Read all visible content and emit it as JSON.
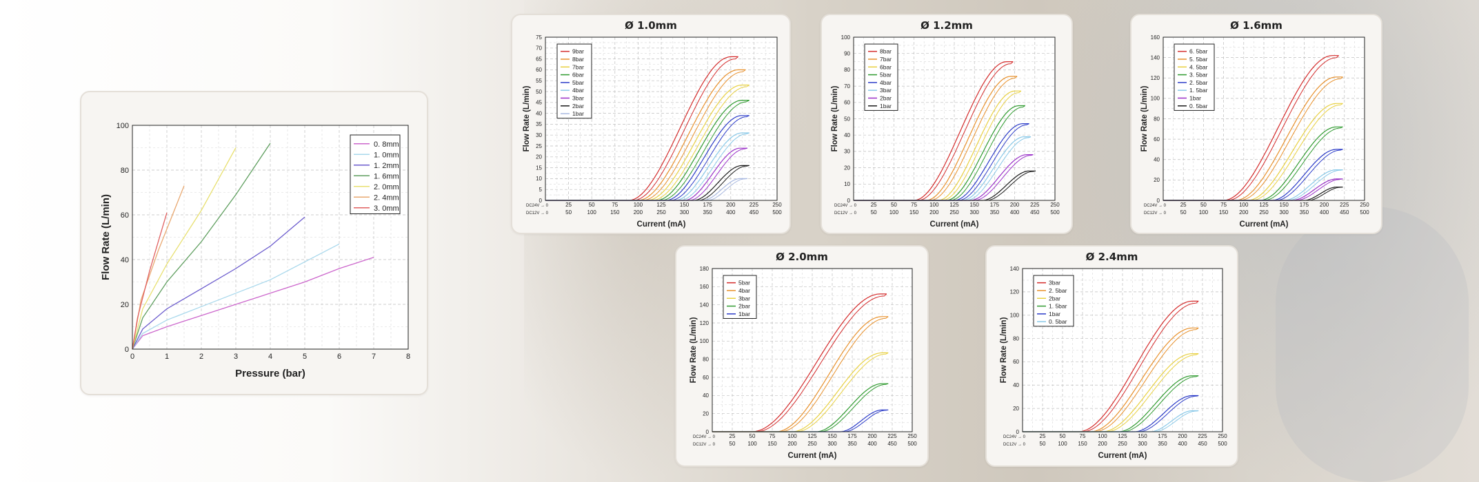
{
  "chart_data": [
    {
      "id": "main",
      "type": "line",
      "title": "",
      "xlabel": "Pressure (bar)",
      "ylabel": "Flow Rate (L/min)",
      "xlim": [
        0,
        8
      ],
      "ylim": [
        0,
        100
      ],
      "xticks": [
        0,
        1,
        2,
        3,
        4,
        5,
        6,
        7,
        8
      ],
      "yticks": [
        0,
        20,
        40,
        60,
        80,
        100
      ],
      "legend_position": "top-right",
      "series": [
        {
          "name": "0. 8mm",
          "color": "#cc66cc",
          "points": [
            [
              0,
              0
            ],
            [
              0.3,
              6
            ],
            [
              1,
              10
            ],
            [
              2,
              15
            ],
            [
              3,
              20
            ],
            [
              4,
              25
            ],
            [
              5,
              30
            ],
            [
              6,
              36
            ],
            [
              7,
              41
            ]
          ]
        },
        {
          "name": "1. 0mm",
          "color": "#a8d8ec",
          "points": [
            [
              0,
              0
            ],
            [
              0.3,
              7
            ],
            [
              1,
              13
            ],
            [
              2,
              19
            ],
            [
              3,
              25
            ],
            [
              4,
              31
            ],
            [
              5,
              39
            ],
            [
              6,
              47
            ]
          ]
        },
        {
          "name": "1. 2mm",
          "color": "#6a5acd",
          "points": [
            [
              0,
              0
            ],
            [
              0.3,
              9
            ],
            [
              1,
              18
            ],
            [
              2,
              27
            ],
            [
              3,
              36
            ],
            [
              4,
              46
            ],
            [
              5,
              59
            ]
          ]
        },
        {
          "name": "1. 6mm",
          "color": "#5e9e5e",
          "points": [
            [
              0,
              0
            ],
            [
              0.3,
              14
            ],
            [
              1,
              30
            ],
            [
              2,
              48
            ],
            [
              3,
              69
            ],
            [
              4,
              92
            ]
          ]
        },
        {
          "name": "2. 0mm",
          "color": "#e8e070",
          "points": [
            [
              0,
              0
            ],
            [
              0.3,
              18
            ],
            [
              1,
              38
            ],
            [
              2,
              62
            ],
            [
              3,
              90
            ]
          ]
        },
        {
          "name": "2. 4mm",
          "color": "#e8a870",
          "points": [
            [
              0,
              0
            ],
            [
              0.25,
              22
            ],
            [
              0.75,
              44
            ],
            [
              1.5,
              73
            ]
          ]
        },
        {
          "name": "3. 0mm",
          "color": "#e06060",
          "points": [
            [
              0,
              0
            ],
            [
              0.15,
              14
            ],
            [
              0.5,
              35
            ],
            [
              1,
              61
            ]
          ]
        }
      ]
    },
    {
      "id": "d10",
      "type": "line",
      "title": "Ø 1.0mm",
      "xlabel": "Current (mA)",
      "ylabel": "Flow Rate (L/min)",
      "xlim": [
        0,
        250
      ],
      "ylim": [
        0,
        75
      ],
      "xticks": [
        0,
        25,
        50,
        75,
        100,
        125,
        150,
        175,
        200,
        225,
        250
      ],
      "x2ticks": [
        "0",
        "50",
        "100",
        "150",
        "200",
        "250",
        "300",
        "350",
        "400",
        "450",
        "500"
      ],
      "xrow1_label": "DC24V → 0",
      "xrow2_label": "DC12V → 0",
      "yticks": [
        0,
        5,
        10,
        15,
        20,
        25,
        30,
        35,
        40,
        45,
        50,
        55,
        60,
        65,
        70,
        75
      ],
      "legend_position": "top-left",
      "series": [
        {
          "name": "9bar",
          "color": "#d42a2a",
          "start": 90,
          "top": 200,
          "max": 66
        },
        {
          "name": "8bar",
          "color": "#e8902a",
          "start": 100,
          "top": 208,
          "max": 60
        },
        {
          "name": "7bar",
          "color": "#e8d040",
          "start": 110,
          "top": 212,
          "max": 53
        },
        {
          "name": "6bar",
          "color": "#2e9a2e",
          "start": 120,
          "top": 212,
          "max": 46
        },
        {
          "name": "5bar",
          "color": "#2a3ac8",
          "start": 130,
          "top": 212,
          "max": 39
        },
        {
          "name": "4bar",
          "color": "#88c8e8",
          "start": 140,
          "top": 212,
          "max": 31
        },
        {
          "name": "3bar",
          "color": "#9a30c8",
          "start": 150,
          "top": 210,
          "max": 24
        },
        {
          "name": "2bar",
          "color": "#1a1a1a",
          "start": 160,
          "top": 212,
          "max": 16
        },
        {
          "name": "1bar",
          "color": "#a8b8e0",
          "start": 170,
          "top": 210,
          "max": 10
        }
      ]
    },
    {
      "id": "d12",
      "type": "line",
      "title": "Ø 1.2mm",
      "xlabel": "Current (mA)",
      "ylabel": "Flow Rate (L/min)",
      "xlim": [
        0,
        250
      ],
      "ylim": [
        0,
        100
      ],
      "xticks": [
        0,
        25,
        50,
        75,
        100,
        125,
        150,
        175,
        200,
        225,
        250
      ],
      "x2ticks": [
        "0",
        "50",
        "100",
        "150",
        "200",
        "250",
        "300",
        "350",
        "400",
        "450",
        "500"
      ],
      "xrow1_label": "DC24V → 0",
      "xrow2_label": "DC12V → 0",
      "yticks": [
        0,
        10,
        20,
        30,
        40,
        50,
        60,
        70,
        80,
        90,
        100
      ],
      "legend_position": "top-left",
      "series": [
        {
          "name": "8bar",
          "color": "#d42a2a",
          "start": 75,
          "top": 190,
          "max": 85
        },
        {
          "name": "7bar",
          "color": "#e8902a",
          "start": 90,
          "top": 195,
          "max": 76
        },
        {
          "name": "6bar",
          "color": "#e8d040",
          "start": 105,
          "top": 200,
          "max": 67
        },
        {
          "name": "5bar",
          "color": "#2e9a2e",
          "start": 115,
          "top": 205,
          "max": 58
        },
        {
          "name": "4bar",
          "color": "#2a3ac8",
          "start": 125,
          "top": 210,
          "max": 47
        },
        {
          "name": "3bar",
          "color": "#88c8e8",
          "start": 135,
          "top": 212,
          "max": 39
        },
        {
          "name": "2bar",
          "color": "#9a30c8",
          "start": 145,
          "top": 215,
          "max": 28
        },
        {
          "name": "1bar",
          "color": "#1a1a1a",
          "start": 160,
          "top": 218,
          "max": 18
        }
      ]
    },
    {
      "id": "d16",
      "type": "line",
      "title": "Ø 1.6mm",
      "xlabel": "Current (mA)",
      "ylabel": "Flow Rate (L/min)",
      "xlim": [
        0,
        250
      ],
      "ylim": [
        0,
        160
      ],
      "xticks": [
        0,
        25,
        50,
        75,
        100,
        125,
        150,
        175,
        200,
        225,
        250
      ],
      "x2ticks": [
        "0",
        "50",
        "100",
        "150",
        "200",
        "250",
        "300",
        "350",
        "400",
        "450",
        "500"
      ],
      "xrow1_label": "DC24V → 0",
      "xrow2_label": "DC12V → 0",
      "yticks": [
        0,
        20,
        40,
        60,
        80,
        100,
        120,
        140,
        160
      ],
      "legend_position": "top-left",
      "series": [
        {
          "name": "6. 5bar",
          "color": "#d42a2a",
          "start": 75,
          "top": 210,
          "max": 142
        },
        {
          "name": "5. 5bar",
          "color": "#e8902a",
          "start": 90,
          "top": 215,
          "max": 121
        },
        {
          "name": "4. 5bar",
          "color": "#e8d040",
          "start": 105,
          "top": 215,
          "max": 95
        },
        {
          "name": "3. 5bar",
          "color": "#2e9a2e",
          "start": 120,
          "top": 215,
          "max": 72
        },
        {
          "name": "2. 5bar",
          "color": "#2a3ac8",
          "start": 135,
          "top": 215,
          "max": 50
        },
        {
          "name": "1. 5bar",
          "color": "#88c8e8",
          "start": 150,
          "top": 215,
          "max": 30
        },
        {
          "name": "1bar",
          "color": "#9a30c8",
          "start": 160,
          "top": 215,
          "max": 21
        },
        {
          "name": "0. 5bar",
          "color": "#1a1a1a",
          "start": 175,
          "top": 215,
          "max": 13
        }
      ]
    },
    {
      "id": "d20",
      "type": "line",
      "title": "Ø 2.0mm",
      "xlabel": "Current (mA)",
      "ylabel": "Flow Rate (L/min)",
      "xlim": [
        0,
        250
      ],
      "ylim": [
        0,
        180
      ],
      "xticks": [
        0,
        25,
        50,
        75,
        100,
        125,
        150,
        175,
        200,
        225,
        250
      ],
      "x2ticks": [
        "0",
        "50",
        "100",
        "150",
        "200",
        "250",
        "300",
        "350",
        "400",
        "450",
        "500"
      ],
      "xrow1_label": "DC24V → 0",
      "xrow2_label": "DC12V → 0",
      "yticks": [
        0,
        20,
        40,
        60,
        80,
        100,
        120,
        140,
        160,
        180
      ],
      "legend_position": "top-left",
      "series": [
        {
          "name": "5bar",
          "color": "#d42a2a",
          "start": 50,
          "top": 210,
          "max": 152
        },
        {
          "name": "4bar",
          "color": "#e8902a",
          "start": 80,
          "top": 212,
          "max": 127
        },
        {
          "name": "3bar",
          "color": "#e8d040",
          "start": 100,
          "top": 212,
          "max": 87
        },
        {
          "name": "2bar",
          "color": "#2e9a2e",
          "start": 130,
          "top": 212,
          "max": 53
        },
        {
          "name": "1bar",
          "color": "#2a3ac8",
          "start": 160,
          "top": 212,
          "max": 24
        }
      ]
    },
    {
      "id": "d24",
      "type": "line",
      "title": "Ø 2.4mm",
      "xlabel": "Current (mA)",
      "ylabel": "Flow Rate (L/min)",
      "xlim": [
        0,
        250
      ],
      "ylim": [
        0,
        140
      ],
      "xticks": [
        0,
        25,
        50,
        75,
        100,
        125,
        150,
        175,
        200,
        225,
        250
      ],
      "x2ticks": [
        "0",
        "50",
        "100",
        "150",
        "200",
        "250",
        "300",
        "350",
        "400",
        "450",
        "500"
      ],
      "xrow1_label": "DC24V → 0",
      "xrow2_label": "DC12V → 0",
      "yticks": [
        0,
        20,
        40,
        60,
        80,
        100,
        120,
        140
      ],
      "legend_position": "top-left",
      "series": [
        {
          "name": "3bar",
          "color": "#d42a2a",
          "start": 70,
          "top": 212,
          "max": 112
        },
        {
          "name": "2. 5bar",
          "color": "#e8902a",
          "start": 85,
          "top": 212,
          "max": 89
        },
        {
          "name": "2bar",
          "color": "#e8d040",
          "start": 100,
          "top": 212,
          "max": 67
        },
        {
          "name": "1. 5bar",
          "color": "#2e9a2e",
          "start": 120,
          "top": 212,
          "max": 48
        },
        {
          "name": "1bar",
          "color": "#2a3ac8",
          "start": 140,
          "top": 212,
          "max": 31
        },
        {
          "name": "0. 5bar",
          "color": "#88c8e8",
          "start": 160,
          "top": 212,
          "max": 18
        }
      ]
    }
  ]
}
